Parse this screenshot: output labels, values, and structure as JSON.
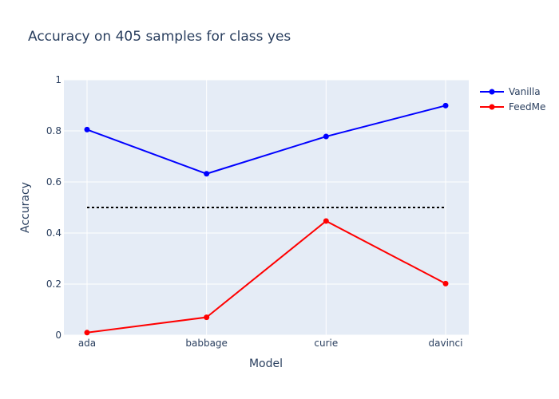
{
  "chart_data": {
    "type": "line",
    "title": "Accuracy on 405 samples for class  yes",
    "xlabel": "Model",
    "ylabel": "Accuracy",
    "categories": [
      "ada",
      "babbage",
      "curie",
      "davinci"
    ],
    "ylim": [
      0,
      1
    ],
    "yticks": [
      0,
      0.2,
      0.4,
      0.6,
      0.8,
      1
    ],
    "ytick_labels": [
      "0",
      "0.2",
      "0.4",
      "0.6",
      "0.8",
      "1"
    ],
    "grid": true,
    "legend_position": "top-right",
    "series": [
      {
        "name": "Vanilla",
        "color": "#0000ff",
        "values": [
          0.805,
          0.632,
          0.778,
          0.899
        ]
      },
      {
        "name": "FeedMe",
        "color": "#ff0000",
        "values": [
          0.01,
          0.07,
          0.447,
          0.202
        ]
      }
    ],
    "reference_line": {
      "y": 0.5,
      "style": "dotted",
      "color": "#000000"
    },
    "plot_background": "#e5ecf6"
  }
}
